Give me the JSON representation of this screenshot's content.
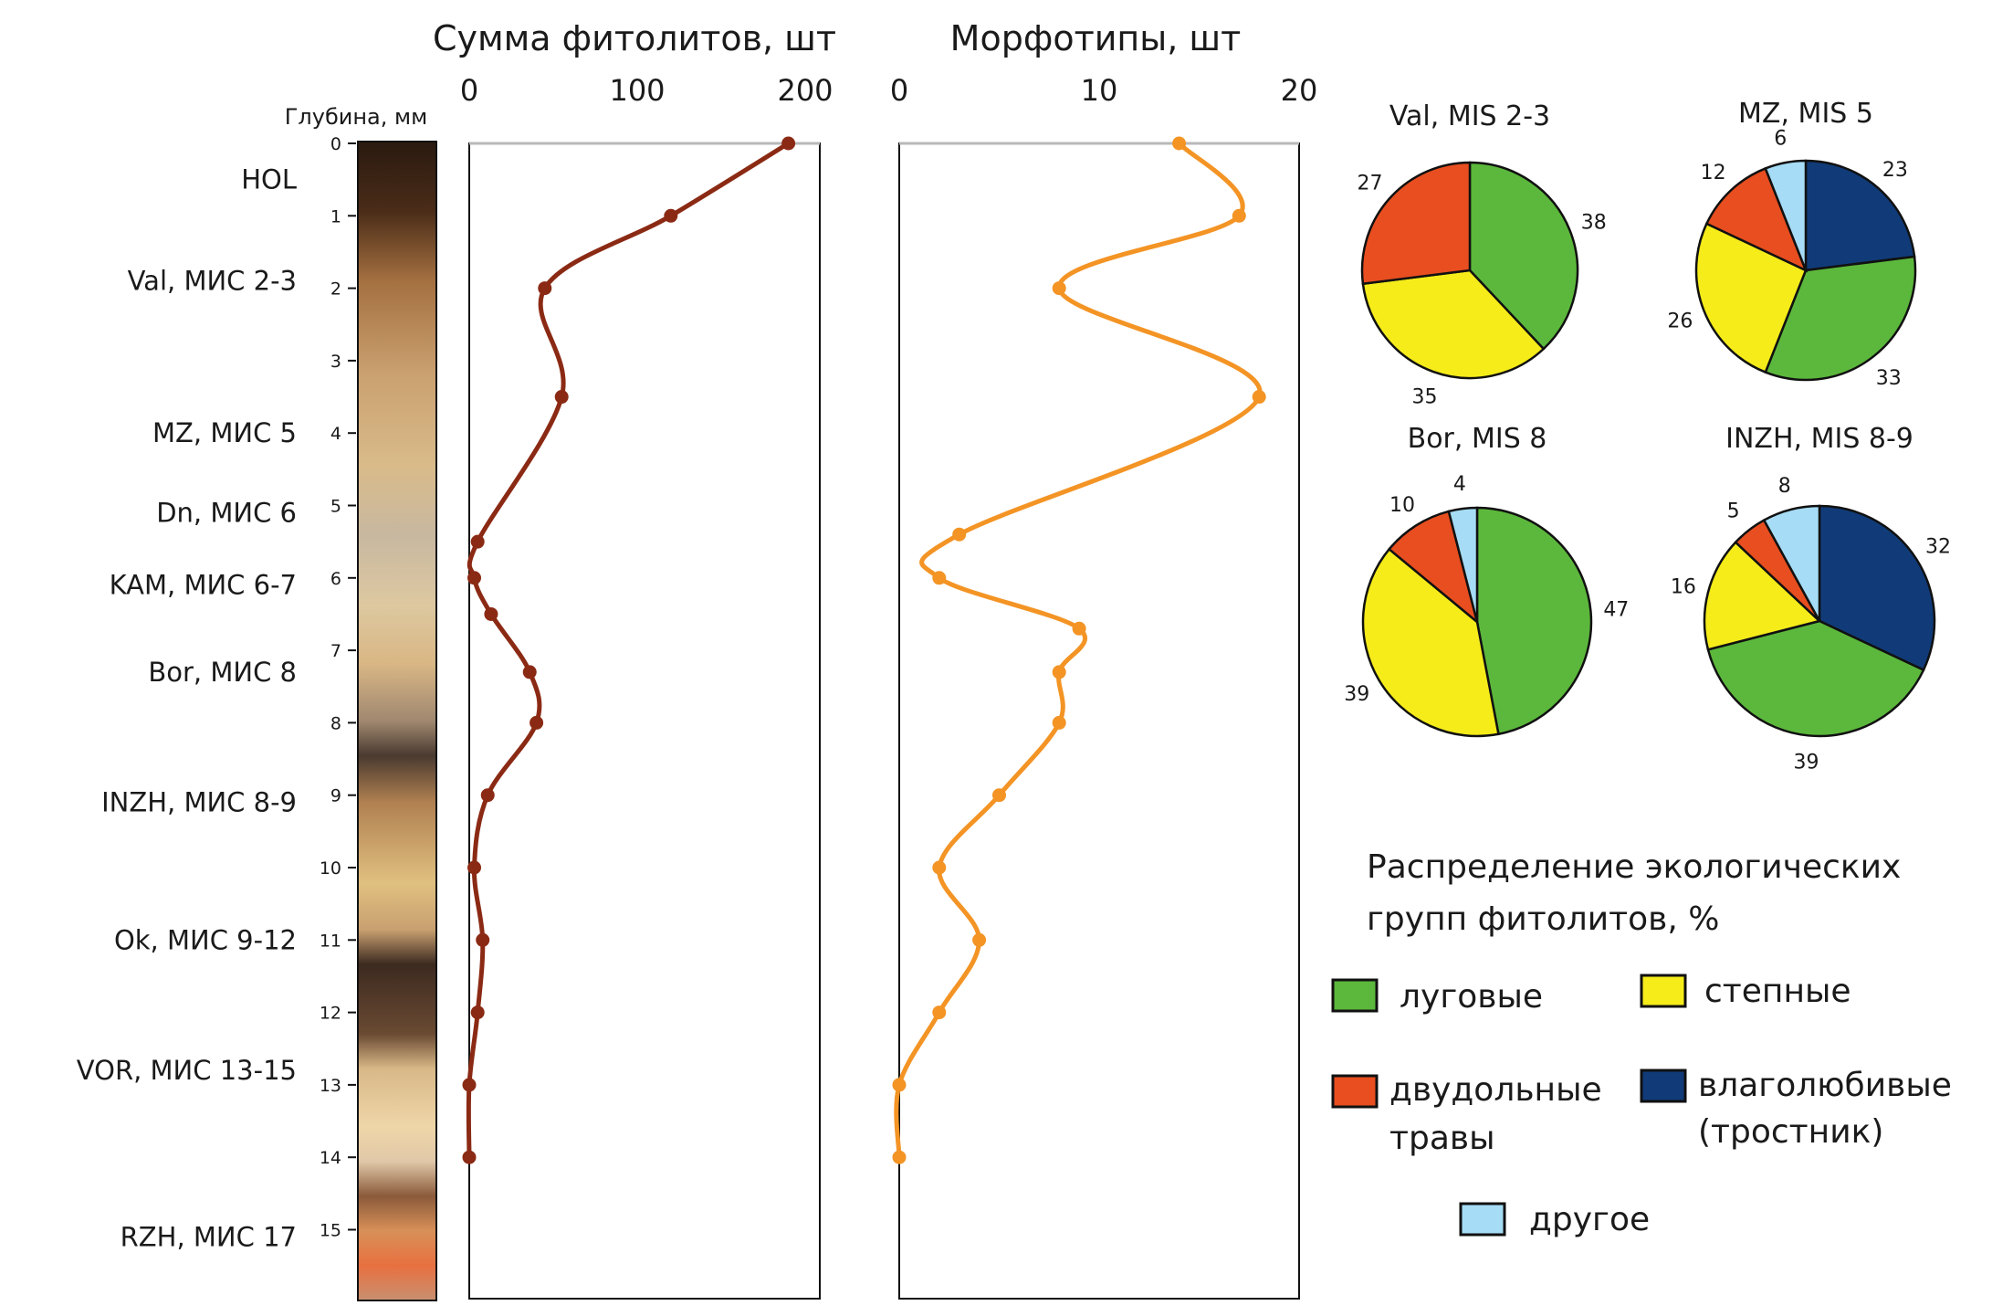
{
  "depth_axis": {
    "title": "Глубина, мм",
    "ticks": [
      "0",
      "1",
      "2",
      "3",
      "4",
      "5",
      "6",
      "7",
      "8",
      "9",
      "10",
      "11",
      "12",
      "13",
      "14",
      "15"
    ]
  },
  "horizons": [
    {
      "label": "HOL",
      "depth": 0.5
    },
    {
      "label": "Val, МИС 2-3",
      "depth": 1.9
    },
    {
      "label": "MZ, МИС 5",
      "depth": 4.0
    },
    {
      "label": "Dn, МИС 6",
      "depth": 5.1
    },
    {
      "label": "KAM, МИС 6-7",
      "depth": 6.1
    },
    {
      "label": "Bor, МИС 8",
      "depth": 7.3
    },
    {
      "label": "INZH, МИС 8-9",
      "depth": 9.1
    },
    {
      "label": "Ok, МИС 9-12",
      "depth": 11.0
    },
    {
      "label": "VOR, МИС 13-15",
      "depth": 12.8
    },
    {
      "label": "RZH, МИС 17",
      "depth": 15.1
    }
  ],
  "colors": {
    "sum_line": "#8b2a14",
    "morph_line": "#f39425",
    "meadow": "#5cb83c",
    "steppe": "#f5ec1a",
    "dicot": "#e84e1f",
    "hygro": "#103b78",
    "other": "#a6dcf5"
  },
  "chart_data": [
    {
      "type": "line",
      "title": "Сумма фитолитов, шт",
      "xlim": [
        0,
        200
      ],
      "xticks": [
        "0",
        "100",
        "200"
      ],
      "series": [
        {
          "x": [
            190,
            120,
            45,
            55,
            5,
            3,
            13,
            36,
            40,
            11,
            3,
            8,
            5,
            0,
            0
          ],
          "y": [
            0,
            1,
            2,
            3.5,
            5.5,
            6,
            6.5,
            7.3,
            8,
            9,
            10,
            11,
            12,
            13,
            14
          ]
        }
      ]
    },
    {
      "type": "line",
      "title": "Морфотипы, шт",
      "xlim": [
        0,
        20
      ],
      "xticks": [
        "0",
        "10",
        "20"
      ],
      "series": [
        {
          "x": [
            14,
            17,
            8,
            18,
            3,
            2,
            9,
            8,
            8,
            5,
            2,
            4,
            2,
            0,
            0
          ],
          "y": [
            0,
            1,
            2,
            3.5,
            5.4,
            6,
            6.7,
            7.3,
            8,
            9,
            10,
            11,
            12,
            13,
            14
          ]
        }
      ]
    },
    {
      "type": "pie",
      "title": "Val, MIS 2-3",
      "slices": [
        {
          "group": "meadow",
          "value": 38
        },
        {
          "group": "steppe",
          "value": 35
        },
        {
          "group": "dicot",
          "value": 27
        }
      ]
    },
    {
      "type": "pie",
      "title": "MZ, MIS 5",
      "slices": [
        {
          "group": "hygro",
          "value": 23
        },
        {
          "group": "meadow",
          "value": 33
        },
        {
          "group": "steppe",
          "value": 26
        },
        {
          "group": "dicot",
          "value": 12
        },
        {
          "group": "other",
          "value": 6
        }
      ]
    },
    {
      "type": "pie",
      "title": "Bor, MIS 8",
      "slices": [
        {
          "group": "meadow",
          "value": 47
        },
        {
          "group": "steppe",
          "value": 39
        },
        {
          "group": "dicot",
          "value": 10
        },
        {
          "group": "other",
          "value": 4
        }
      ]
    },
    {
      "type": "pie",
      "title": "INZH, MIS 8-9",
      "slices": [
        {
          "group": "hygro",
          "value": 32
        },
        {
          "group": "meadow",
          "value": 39
        },
        {
          "group": "steppe",
          "value": 16
        },
        {
          "group": "dicot",
          "value": 5
        },
        {
          "group": "other",
          "value": 8
        }
      ]
    }
  ],
  "legend": {
    "title_line1": "Распределение экологических",
    "title_line2": "групп фитолитов, %",
    "meadow": "луговые",
    "steppe": "степные",
    "dicot_line1": "двудольные",
    "dicot_line2": "травы",
    "hygro_line1": "влаголюбивые",
    "hygro_line2": "(тростник)",
    "other": "другое"
  }
}
